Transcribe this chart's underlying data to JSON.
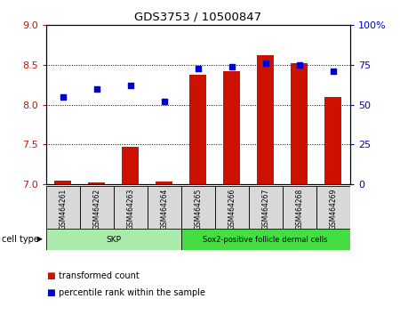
{
  "title": "GDS3753 / 10500847",
  "samples": [
    "GSM464261",
    "GSM464262",
    "GSM464263",
    "GSM464264",
    "GSM464265",
    "GSM464266",
    "GSM464267",
    "GSM464268",
    "GSM464269"
  ],
  "transformed_count": [
    7.05,
    7.02,
    7.47,
    7.04,
    8.38,
    8.42,
    8.62,
    8.52,
    8.1
  ],
  "percentile_rank": [
    55,
    60,
    62,
    52,
    73,
    74,
    76,
    75,
    71
  ],
  "cell_type_groups": [
    {
      "label": "SKP",
      "start": 0,
      "end": 4,
      "color": "#aaeaaa"
    },
    {
      "label": "Sox2-positive follicle dermal cells",
      "start": 4,
      "end": 9,
      "color": "#44dd44"
    }
  ],
  "ylim_left": [
    7.0,
    9.0
  ],
  "ylim_right": [
    0,
    100
  ],
  "yticks_left": [
    7.0,
    7.5,
    8.0,
    8.5,
    9.0
  ],
  "yticks_right": [
    0,
    25,
    50,
    75,
    100
  ],
  "yticklabels_right": [
    "0",
    "25",
    "50",
    "75",
    "100%"
  ],
  "bar_color": "#cc1100",
  "dot_color": "#0000cc",
  "bar_width": 0.5,
  "legend_items": [
    {
      "label": "transformed count",
      "color": "#cc1100"
    },
    {
      "label": "percentile rank within the sample",
      "color": "#0000cc"
    }
  ],
  "cell_type_label": "cell type",
  "sample_box_color": "#d8d8d8",
  "gridline_color": "#000000"
}
